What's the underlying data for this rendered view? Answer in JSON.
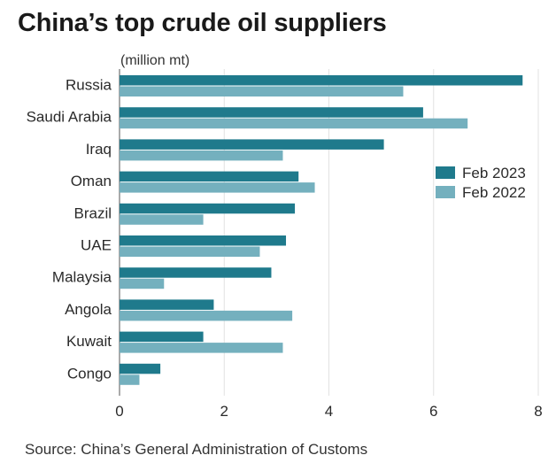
{
  "chart_data": {
    "type": "bar",
    "orientation": "horizontal",
    "title": "China’s top crude oil suppliers",
    "unit_label": "(million mt)",
    "source": "Source: China’s General Administration of Customs",
    "categories": [
      "Russia",
      "Saudi Arabia",
      "Iraq",
      "Oman",
      "Brazil",
      "UAE",
      "Malaysia",
      "Angola",
      "Kuwait",
      "Congo"
    ],
    "series": [
      {
        "name": "Feb 2023",
        "color": "#1f7a8c",
        "values": [
          7.7,
          5.8,
          5.05,
          3.42,
          3.35,
          3.18,
          2.9,
          1.8,
          1.6,
          0.78
        ]
      },
      {
        "name": "Feb 2022",
        "color": "#74b0be",
        "values": [
          5.42,
          6.65,
          3.12,
          3.73,
          1.6,
          2.68,
          0.85,
          3.3,
          3.12,
          0.38
        ]
      }
    ],
    "xlim": [
      0,
      8
    ],
    "xticks": [
      0,
      2,
      4,
      6,
      8
    ],
    "grid": true,
    "legend_position": "right"
  }
}
